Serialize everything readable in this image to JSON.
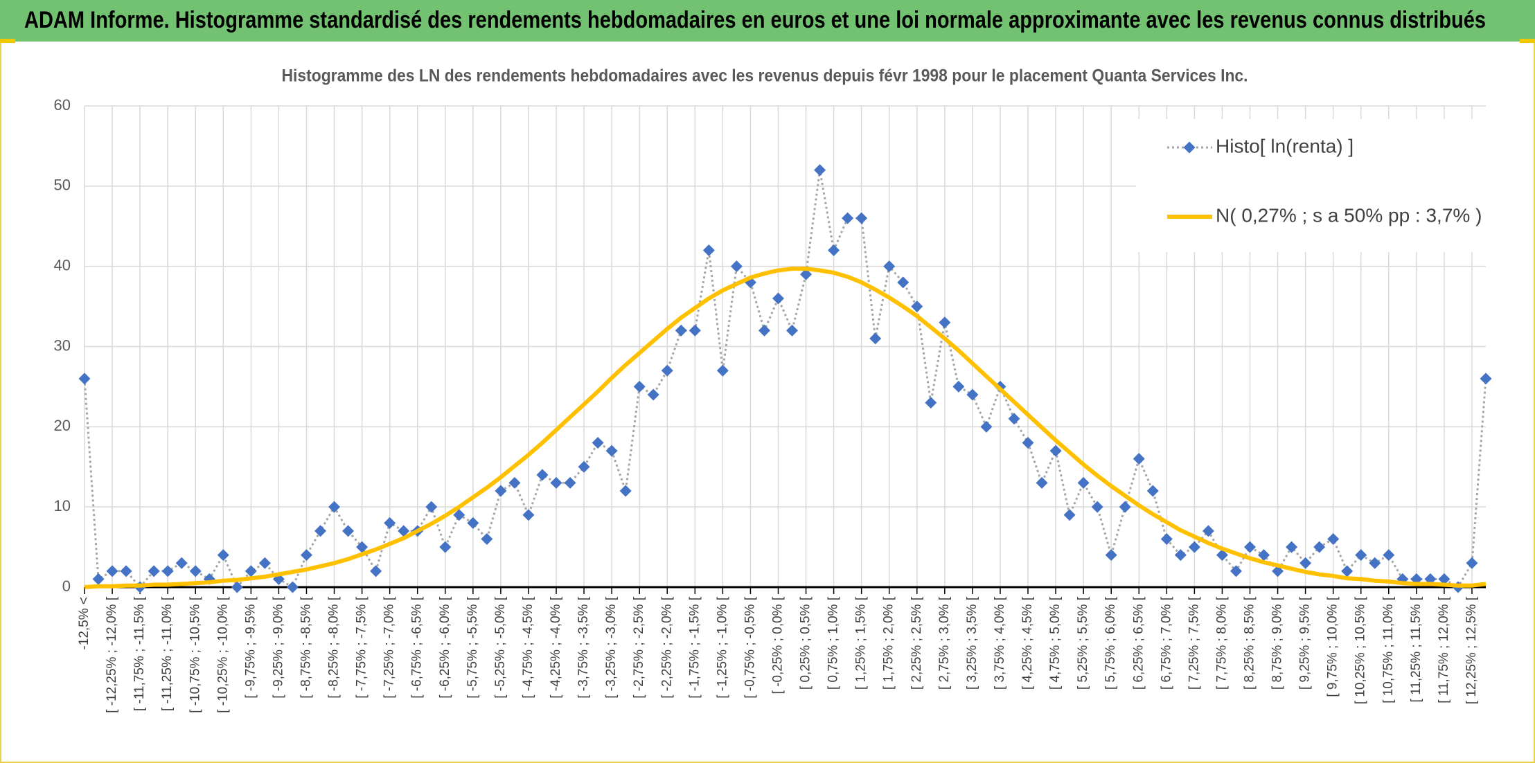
{
  "header": {
    "title": "ADAM Informe. Histogramme standardisé des rendements hebdomadaires en euros et une loi normale approximante avec les revenus connus distribués"
  },
  "chart_data": {
    "type": "line",
    "title": "Histogramme des LN des rendements hebdomadaires avec les revenus depuis févr 1998 pour le placement Quanta Services Inc.",
    "categories": [
      "-12,5% <",
      null,
      "[ -12,25% ; -12,0% [",
      null,
      "[ -11,75% ; -11,5% [",
      null,
      "[ -11,25% ; -11,0% [",
      null,
      "[ -10,75% ; -10,5% [",
      null,
      "[ -10,25% ; -10,0% [",
      null,
      "[ -9,75% ; -9,5% [",
      null,
      "[ -9,25% ; -9,0% [",
      null,
      "[ -8,75% ; -8,5% [",
      null,
      "[ -8,25% ; -8,0% [",
      null,
      "[ -7,75% ; -7,5% [",
      null,
      "[ -7,25% ; -7,0% [",
      null,
      "[ -6,75% ; -6,5% [",
      null,
      "[ -6,25% ; -6,0% [",
      null,
      "[ -5,75% ; -5,5% [",
      null,
      "[ -5,25% ; -5,0% [",
      null,
      "[ -4,75% ; -4,5% [",
      null,
      "[ -4,25% ; -4,0% [",
      null,
      "[ -3,75% ; -3,5% [",
      null,
      "[ -3,25% ; -3,0% [",
      null,
      "[ -2,75% ; -2,5% [",
      null,
      "[ -2,25% ; -2,0% [",
      null,
      "[ -1,75% ; -1,5% [",
      null,
      "[ -1,25% ; -1,0% [",
      null,
      "[ -0,75% ; -0,5% [",
      null,
      "[ -0,25% ; 0,0% [",
      null,
      "[ 0,25% ; 0,5% [",
      null,
      "[ 0,75% ; 1,0% [",
      null,
      "[ 1,25% ; 1,5% [",
      null,
      "[ 1,75% ; 2,0% [",
      null,
      "[ 2,25% ; 2,5% [",
      null,
      "[ 2,75% ; 3,0% [",
      null,
      "[ 3,25% ; 3,5% [",
      null,
      "[ 3,75% ; 4,0% [",
      null,
      "[ 4,25% ; 4,5% [",
      null,
      "[ 4,75% ; 5,0% [",
      null,
      "[ 5,25% ; 5,5% [",
      null,
      "[ 5,75% ; 6,0% [",
      null,
      "[ 6,25% ; 6,5% [",
      null,
      "[ 6,75% ; 7,0% [",
      null,
      "[ 7,25% ; 7,5% [",
      null,
      "[ 7,75% ; 8,0% [",
      null,
      "[ 8,25% ; 8,5% [",
      null,
      "[ 8,75% ; 9,0% [",
      null,
      "[ 9,25% ; 9,5% [",
      null,
      "[ 9,75% ; 10,0% [",
      null,
      "[ 10,25% ; 10,5% [",
      null,
      "[ 10,75% ; 11,0% [",
      null,
      "[ 11,25% ; 11,5% [",
      null,
      "[ 11,75% ; 12,0% [",
      null,
      "[ 12,25% ; 12,5% [",
      null
    ],
    "series": [
      {
        "name": "Histo[ ln(renta) ]",
        "color": "#4472c4",
        "line_color": "#a5a5a5",
        "values": [
          26,
          1,
          2,
          2,
          0,
          2,
          2,
          3,
          2,
          1,
          4,
          0,
          2,
          3,
          1,
          0,
          4,
          7,
          10,
          7,
          5,
          2,
          8,
          7,
          7,
          10,
          5,
          9,
          8,
          6,
          12,
          13,
          9,
          14,
          13,
          13,
          15,
          18,
          17,
          12,
          25,
          24,
          27,
          32,
          32,
          42,
          27,
          40,
          38,
          32,
          36,
          32,
          39,
          52,
          42,
          46,
          46,
          31,
          40,
          38,
          35,
          23,
          33,
          25,
          24,
          20,
          25,
          21,
          18,
          13,
          17,
          9,
          13,
          10,
          4,
          10,
          16,
          12,
          6,
          4,
          5,
          7,
          4,
          2,
          5,
          4,
          2,
          5,
          3,
          5,
          6,
          2,
          4,
          3,
          4,
          1,
          1,
          1,
          1,
          0,
          3,
          26
        ]
      },
      {
        "name": "N( 0,27% ; s a 50% pp : 3,7% )",
        "color": "#ffc000",
        "values": [
          0,
          0.1,
          0.1,
          0.2,
          0.2,
          0.3,
          0.3,
          0.4,
          0.5,
          0.6,
          0.8,
          0.9,
          1.1,
          1.3,
          1.6,
          1.9,
          2.2,
          2.6,
          3.0,
          3.5,
          4.1,
          4.7,
          5.4,
          6.1,
          7.0,
          7.9,
          8.9,
          10.0,
          11.2,
          12.4,
          13.7,
          15.1,
          16.5,
          18.0,
          19.6,
          21.2,
          22.8,
          24.4,
          26.1,
          27.7,
          29.2,
          30.7,
          32.2,
          33.6,
          34.8,
          36.0,
          37.0,
          37.8,
          38.6,
          39.1,
          39.5,
          39.7,
          39.7,
          39.5,
          39.2,
          38.7,
          38.0,
          37.1,
          36.1,
          35.0,
          33.8,
          32.4,
          31.0,
          29.5,
          27.9,
          26.3,
          24.7,
          23.1,
          21.5,
          19.9,
          18.3,
          16.8,
          15.3,
          13.9,
          12.6,
          11.4,
          10.2,
          9.1,
          8.1,
          7.1,
          6.3,
          5.5,
          4.8,
          4.2,
          3.6,
          3.1,
          2.7,
          2.3,
          1.9,
          1.6,
          1.4,
          1.1,
          1.0,
          0.8,
          0.7,
          0.5,
          0.4,
          0.4,
          0.3,
          0.2,
          0.2,
          0.4
        ]
      }
    ],
    "ylim": [
      0,
      60
    ],
    "yticks": [
      0,
      10,
      20,
      30,
      40,
      50,
      60
    ],
    "grid": true,
    "legend": "top-right"
  }
}
